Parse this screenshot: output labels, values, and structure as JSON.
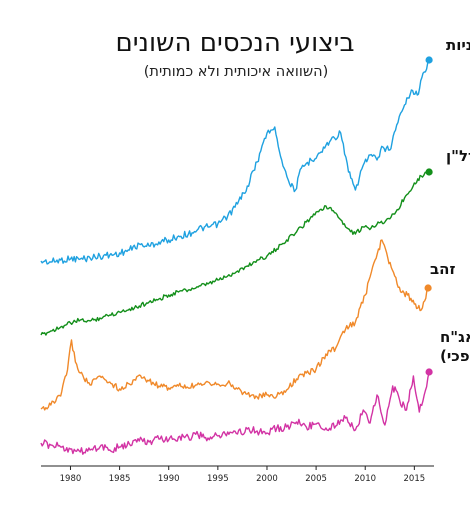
{
  "chart_data": {
    "type": "line",
    "title": "ביצועי הנכסים השונים",
    "subtitle": "(השוואה איכותית ולא כמותית)",
    "xlabel": "",
    "ylabel": "",
    "xlim": [
      1977,
      2017
    ],
    "x_ticks": [
      1980,
      1985,
      1990,
      1995,
      2000,
      2005,
      2010,
      2015
    ],
    "grid": false,
    "legend": "labels at right end of each line",
    "series": [
      {
        "name": "מניות",
        "label_lines": [
          "מניות"
        ],
        "color": "#1fa1e0",
        "end_marker": true,
        "points": [
          [
            1977,
            261
          ],
          [
            1978,
            262
          ],
          [
            1979,
            260
          ],
          [
            1980,
            259
          ],
          [
            1981,
            259
          ],
          [
            1982,
            258
          ],
          [
            1983,
            256
          ],
          [
            1984,
            255
          ],
          [
            1985,
            253
          ],
          [
            1986,
            250
          ],
          [
            1987,
            244
          ],
          [
            1988,
            246
          ],
          [
            1989,
            242
          ],
          [
            1990,
            240
          ],
          [
            1991,
            236
          ],
          [
            1992,
            234
          ],
          [
            1993,
            229
          ],
          [
            1994,
            227
          ],
          [
            1995,
            224
          ],
          [
            1996,
            216
          ],
          [
            1997,
            204
          ],
          [
            1998,
            186
          ],
          [
            1999,
            162
          ],
          [
            2000,
            133
          ],
          [
            2000.8,
            127
          ],
          [
            2001.5,
            160
          ],
          [
            2002.3,
            184
          ],
          [
            2002.9,
            190
          ],
          [
            2003.5,
            168
          ],
          [
            2004.5,
            160
          ],
          [
            2005.5,
            152
          ],
          [
            2006.5,
            140
          ],
          [
            2007.5,
            133
          ],
          [
            2008.3,
            172
          ],
          [
            2009,
            190
          ],
          [
            2009.8,
            165
          ],
          [
            2010.5,
            155
          ],
          [
            2011.2,
            160
          ],
          [
            2011.8,
            147
          ],
          [
            2012.5,
            150
          ],
          [
            2013.2,
            125
          ],
          [
            2014,
            105
          ],
          [
            2014.7,
            90
          ],
          [
            2015.3,
            95
          ],
          [
            2016,
            72
          ],
          [
            2016.5,
            60
          ]
        ]
      },
      {
        "name": "נדל\"ן",
        "label_lines": [
          "נדל\"ן"
        ],
        "color": "#138f1a",
        "end_marker": true,
        "points": [
          [
            1977,
            335
          ],
          [
            1978,
            331
          ],
          [
            1979,
            327
          ],
          [
            1980,
            323
          ],
          [
            1981,
            320
          ],
          [
            1982,
            321
          ],
          [
            1983,
            318
          ],
          [
            1984,
            315
          ],
          [
            1985,
            312
          ],
          [
            1986,
            309
          ],
          [
            1987,
            306
          ],
          [
            1988,
            302
          ],
          [
            1989,
            299
          ],
          [
            1990,
            295
          ],
          [
            1991,
            292
          ],
          [
            1992,
            290
          ],
          [
            1993,
            287
          ],
          [
            1994,
            284
          ],
          [
            1995,
            280
          ],
          [
            1996,
            276
          ],
          [
            1997,
            271
          ],
          [
            1998,
            266
          ],
          [
            1999,
            260
          ],
          [
            2000,
            256
          ],
          [
            2001,
            249
          ],
          [
            2002,
            240
          ],
          [
            2003,
            232
          ],
          [
            2004,
            222
          ],
          [
            2005,
            212
          ],
          [
            2006,
            206
          ],
          [
            2007,
            213
          ],
          [
            2008,
            227
          ],
          [
            2009,
            234
          ],
          [
            2009.8,
            227
          ],
          [
            2010.6,
            228
          ],
          [
            2011.3,
            222
          ],
          [
            2012,
            222
          ],
          [
            2013,
            214
          ],
          [
            2014,
            198
          ],
          [
            2015,
            183
          ],
          [
            2015.7,
            176
          ],
          [
            2016.5,
            172
          ]
        ]
      },
      {
        "name": "זהב",
        "label_lines": [
          "זהב"
        ],
        "color": "#f0892a",
        "end_marker": true,
        "points": [
          [
            1977,
            409
          ],
          [
            1978,
            405
          ],
          [
            1979,
            396
          ],
          [
            1979.7,
            370
          ],
          [
            1980.1,
            340
          ],
          [
            1980.5,
            362
          ],
          [
            1981,
            373
          ],
          [
            1982,
            385
          ],
          [
            1983,
            376
          ],
          [
            1984,
            382
          ],
          [
            1985,
            389
          ],
          [
            1986,
            384
          ],
          [
            1987,
            375
          ],
          [
            1988,
            381
          ],
          [
            1989,
            386
          ],
          [
            1990,
            388
          ],
          [
            1991,
            386
          ],
          [
            1992,
            388
          ],
          [
            1993,
            383
          ],
          [
            1994,
            382
          ],
          [
            1995,
            384
          ],
          [
            1996,
            383
          ],
          [
            1997,
            389
          ],
          [
            1998,
            394
          ],
          [
            1999,
            397
          ],
          [
            2000,
            395
          ],
          [
            2001,
            396
          ],
          [
            2002,
            390
          ],
          [
            2003,
            379
          ],
          [
            2004,
            373
          ],
          [
            2005,
            369
          ],
          [
            2006,
            354
          ],
          [
            2007,
            348
          ],
          [
            2008,
            329
          ],
          [
            2009,
            322
          ],
          [
            2010,
            295
          ],
          [
            2011,
            260
          ],
          [
            2011.7,
            240
          ],
          [
            2012.3,
            258
          ],
          [
            2013,
            276
          ],
          [
            2013.6,
            292
          ],
          [
            2014.3,
            295
          ],
          [
            2015,
            304
          ],
          [
            2015.7,
            310
          ],
          [
            2016.4,
            288
          ]
        ]
      },
      {
        "name": "אג\"ח (הופכי)",
        "label_lines": [
          "אג\"ח",
          "(הופכי)"
        ],
        "color": "#d233a4",
        "end_marker": true,
        "points": [
          [
            1977,
            443
          ],
          [
            1978,
            445
          ],
          [
            1979,
            447
          ],
          [
            1980,
            449
          ],
          [
            1981,
            452
          ],
          [
            1982,
            450
          ],
          [
            1983,
            447
          ],
          [
            1984,
            450
          ],
          [
            1985,
            447
          ],
          [
            1986,
            444
          ],
          [
            1987,
            441
          ],
          [
            1988,
            442
          ],
          [
            1989,
            439
          ],
          [
            1990,
            440
          ],
          [
            1991,
            437
          ],
          [
            1992,
            437
          ],
          [
            1993,
            435
          ],
          [
            1994,
            438
          ],
          [
            1995,
            436
          ],
          [
            1996,
            432
          ],
          [
            1997,
            434
          ],
          [
            1998,
            429
          ],
          [
            1999,
            431
          ],
          [
            2000,
            433
          ],
          [
            2001,
            428
          ],
          [
            2002,
            427
          ],
          [
            2003,
            422
          ],
          [
            2004,
            427
          ],
          [
            2005,
            424
          ],
          [
            2006,
            428
          ],
          [
            2007,
            426
          ],
          [
            2008,
            418
          ],
          [
            2009,
            430
          ],
          [
            2009.8,
            410
          ],
          [
            2010.5,
            423
          ],
          [
            2011.2,
            395
          ],
          [
            2012,
            425
          ],
          [
            2012.8,
            386
          ],
          [
            2013.5,
            400
          ],
          [
            2014.2,
            410
          ],
          [
            2014.9,
            376
          ],
          [
            2015.5,
            412
          ],
          [
            2016,
            395
          ],
          [
            2016.5,
            372
          ]
        ]
      }
    ]
  }
}
